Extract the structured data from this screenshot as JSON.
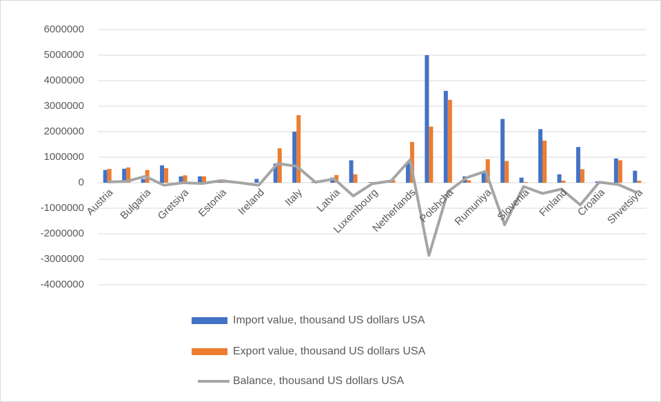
{
  "chart_data": {
    "type": "bar",
    "categories": [
      "Austria",
      null,
      "Bulgaria",
      null,
      "Gretsiya",
      null,
      "Estonia",
      null,
      "Ireland",
      null,
      "Italy",
      null,
      "Latvia",
      null,
      "Luxembourg",
      null,
      "Netherlands",
      null,
      "Polshcha",
      null,
      "Rumuniya",
      null,
      "Slovenia",
      null,
      "Finland",
      null,
      "Croatia",
      null,
      "Shvetsiya"
    ],
    "series": [
      {
        "name": "Import value, thousand US dollars USA",
        "color": "#4472c4",
        "kind": "bar",
        "values": [
          500000,
          550000,
          150000,
          680000,
          250000,
          250000,
          50000,
          20000,
          150000,
          750000,
          2000000,
          30000,
          200000,
          880000,
          20000,
          30000,
          800000,
          5000000,
          3600000,
          250000,
          450000,
          2500000,
          200000,
          2100000,
          330000,
          1400000,
          50000,
          950000,
          470000
        ]
      },
      {
        "name": "Export value, thousand US dollars USA",
        "color": "#ed7d31",
        "kind": "bar",
        "values": [
          540000,
          600000,
          500000,
          570000,
          290000,
          250000,
          130000,
          10000,
          0,
          1350000,
          2650000,
          50000,
          300000,
          330000,
          30000,
          100000,
          1600000,
          2200000,
          3250000,
          100000,
          920000,
          850000,
          30000,
          1650000,
          80000,
          530000,
          30000,
          880000,
          80000
        ]
      },
      {
        "name": "Balance, thousand US dollars USA",
        "color": "#a5a5a5",
        "kind": "line",
        "values": [
          30000,
          50000,
          250000,
          -100000,
          0,
          -30000,
          80000,
          0,
          -100000,
          750000,
          650000,
          20000,
          150000,
          -520000,
          -40000,
          70000,
          900000,
          -2850000,
          -350000,
          200000,
          450000,
          -1650000,
          -150000,
          -420000,
          -250000,
          -870000,
          20000,
          -70000,
          -390000
        ]
      }
    ],
    "ylim": [
      -4000000,
      6000000
    ],
    "yticks": [
      -4000000,
      -3000000,
      -2000000,
      -1000000,
      0,
      1000000,
      2000000,
      3000000,
      4000000,
      5000000,
      6000000
    ],
    "grid": true
  }
}
